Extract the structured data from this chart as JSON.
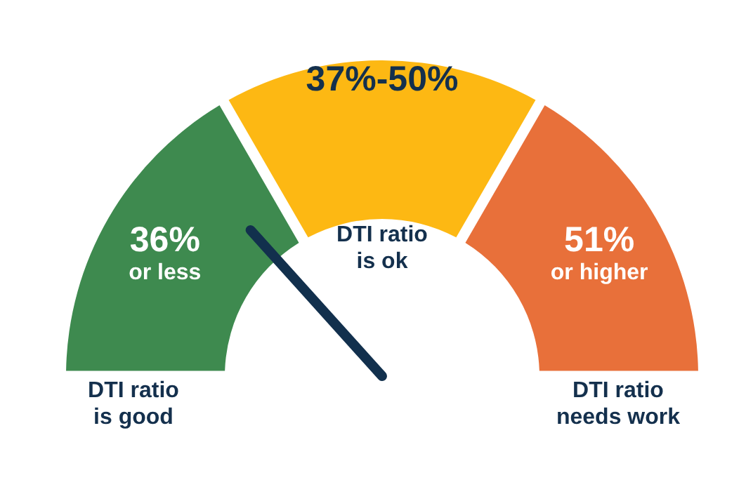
{
  "chart_data": {
    "type": "donut",
    "categories": [
      "36% or less",
      "37%-50%",
      "51% or higher"
    ],
    "values": [
      33.33,
      33.33,
      33.33
    ],
    "colors": [
      "#3e8a4f",
      "#fdb813",
      "#e8703a"
    ],
    "needle": "36% or less",
    "annotations": [
      "DTI ratio is good",
      "DTI ratio is ok",
      "DTI ratio needs work"
    ]
  }
}
